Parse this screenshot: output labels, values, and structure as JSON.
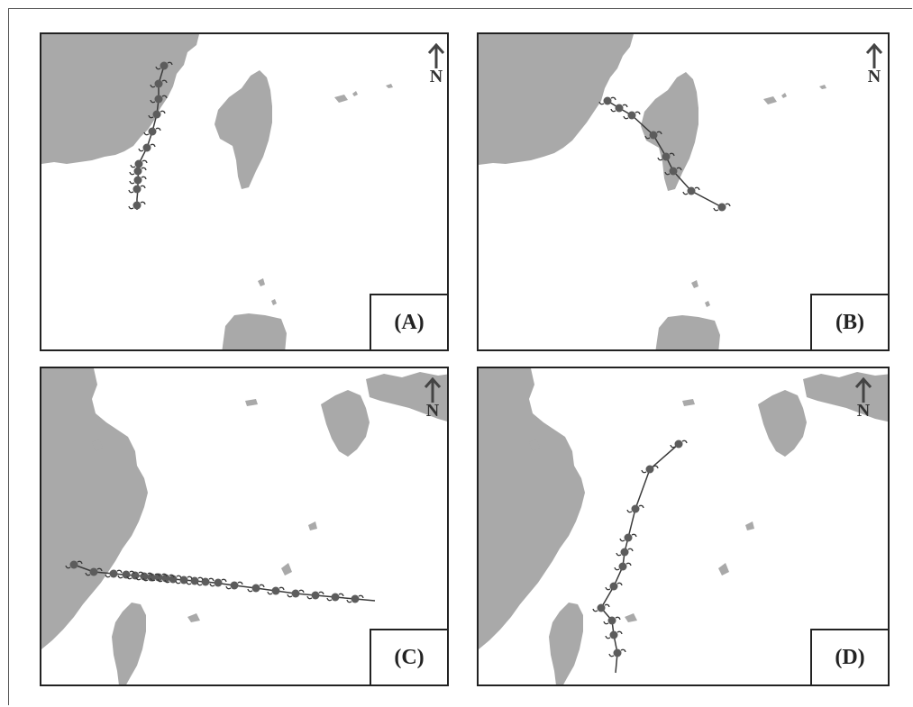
{
  "panels": [
    {
      "id": "A",
      "label": "(A)"
    },
    {
      "id": "B",
      "label": "(B)"
    },
    {
      "id": "C",
      "label": "(C)"
    },
    {
      "id": "D",
      "label": "(D)"
    }
  ],
  "north_label": "N",
  "colors": {
    "land": "#a9a9a9",
    "track": "#3a3a3a",
    "marker": "#5c5c5c",
    "border": "#222222"
  }
}
